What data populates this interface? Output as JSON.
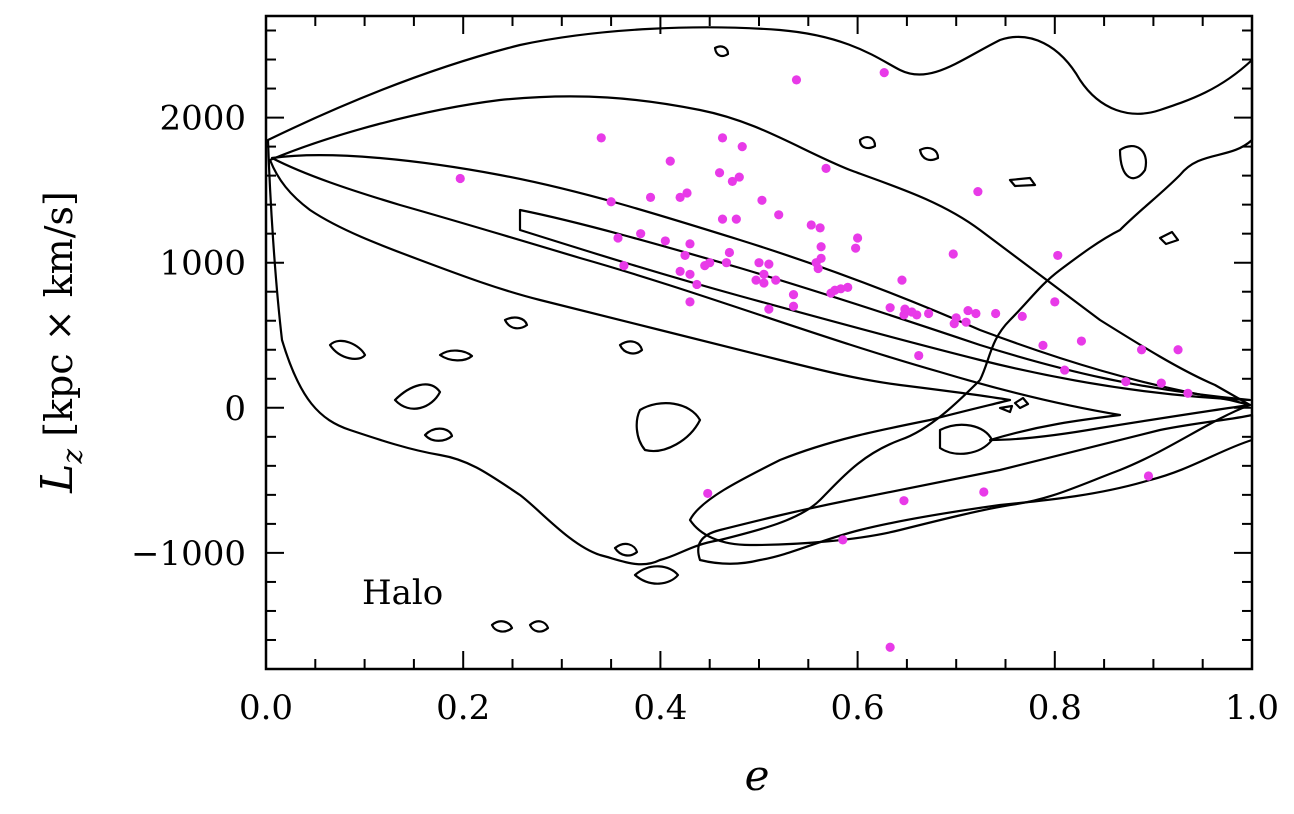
{
  "chart_data": {
    "type": "scatter",
    "xlabel": "e",
    "ylabel_symbol": "L",
    "ylabel_sub": "z",
    "ylabel_units": "[kpc × km/s]",
    "annotation": "Halo",
    "xlim": [
      0.0,
      1.0
    ],
    "ylim": [
      -1800,
      2700
    ],
    "x_ticks": [
      "0.0",
      "0.2",
      "0.4",
      "0.6",
      "0.8",
      "1.0"
    ],
    "x_tick_values": [
      0.0,
      0.2,
      0.4,
      0.6,
      0.8,
      1.0
    ],
    "y_ticks": [
      "−1000",
      "0",
      "1000",
      "2000"
    ],
    "y_tick_values": [
      -1000,
      0,
      1000,
      2000
    ],
    "grid": false,
    "legend": "none",
    "colors": {
      "points": "#e83ae8",
      "contours": "#000000"
    },
    "series": [
      {
        "points": [
          [
            0.197,
            1580
          ],
          [
            0.34,
            1860
          ],
          [
            0.35,
            1420
          ],
          [
            0.357,
            1170
          ],
          [
            0.363,
            980
          ],
          [
            0.38,
            1200
          ],
          [
            0.39,
            1450
          ],
          [
            0.405,
            1150
          ],
          [
            0.41,
            1700
          ],
          [
            0.42,
            940
          ],
          [
            0.42,
            1450
          ],
          [
            0.425,
            1050
          ],
          [
            0.427,
            1480
          ],
          [
            0.43,
            920
          ],
          [
            0.43,
            1130
          ],
          [
            0.43,
            730
          ],
          [
            0.437,
            850
          ],
          [
            0.445,
            980
          ],
          [
            0.45,
            1000
          ],
          [
            0.46,
            1620
          ],
          [
            0.463,
            1860
          ],
          [
            0.463,
            1300
          ],
          [
            0.467,
            1000
          ],
          [
            0.47,
            1070
          ],
          [
            0.473,
            1560
          ],
          [
            0.477,
            1300
          ],
          [
            0.48,
            1590
          ],
          [
            0.483,
            1800
          ],
          [
            0.497,
            880
          ],
          [
            0.5,
            1000
          ],
          [
            0.503,
            1430
          ],
          [
            0.505,
            920
          ],
          [
            0.505,
            860
          ],
          [
            0.51,
            680
          ],
          [
            0.51,
            990
          ],
          [
            0.517,
            880
          ],
          [
            0.52,
            1330
          ],
          [
            0.535,
            780
          ],
          [
            0.535,
            700
          ],
          [
            0.538,
            2260
          ],
          [
            0.553,
            1260
          ],
          [
            0.558,
            1000
          ],
          [
            0.56,
            960
          ],
          [
            0.562,
            1240
          ],
          [
            0.563,
            1110
          ],
          [
            0.563,
            1030
          ],
          [
            0.568,
            1650
          ],
          [
            0.573,
            790
          ],
          [
            0.577,
            810
          ],
          [
            0.583,
            820
          ],
          [
            0.59,
            830
          ],
          [
            0.598,
            1100
          ],
          [
            0.6,
            1170
          ],
          [
            0.627,
            2310
          ],
          [
            0.633,
            690
          ],
          [
            0.645,
            880
          ],
          [
            0.647,
            640
          ],
          [
            0.648,
            680
          ],
          [
            0.655,
            660
          ],
          [
            0.66,
            640
          ],
          [
            0.662,
            360
          ],
          [
            0.672,
            650
          ],
          [
            0.697,
            1060
          ],
          [
            0.698,
            580
          ],
          [
            0.7,
            620
          ],
          [
            0.71,
            590
          ],
          [
            0.712,
            670
          ],
          [
            0.72,
            650
          ],
          [
            0.722,
            1490
          ],
          [
            0.74,
            650
          ],
          [
            0.767,
            630
          ],
          [
            0.788,
            430
          ],
          [
            0.8,
            730
          ],
          [
            0.803,
            1050
          ],
          [
            0.81,
            260
          ],
          [
            0.827,
            460
          ],
          [
            0.872,
            180
          ],
          [
            0.888,
            400
          ],
          [
            0.908,
            170
          ],
          [
            0.925,
            400
          ],
          [
            0.935,
            100
          ],
          [
            0.895,
            -470
          ],
          [
            0.728,
            -580
          ],
          [
            0.647,
            -640
          ],
          [
            0.585,
            -910
          ],
          [
            0.448,
            -590
          ],
          [
            0.633,
            -1650
          ]
        ]
      }
    ]
  }
}
